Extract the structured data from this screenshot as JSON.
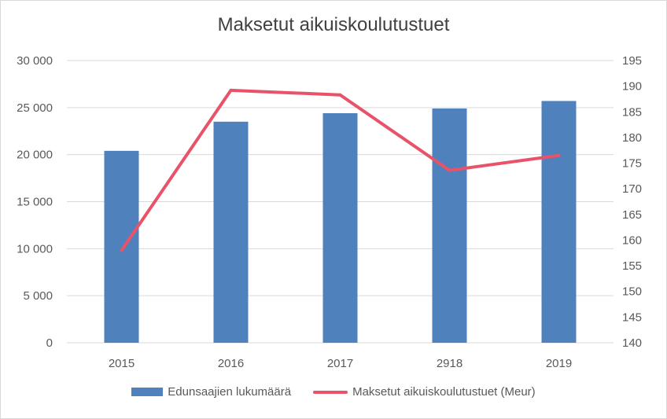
{
  "chart_data": {
    "type": "bar",
    "title": "Maksetut aikuiskoulutustuet",
    "categories": [
      "2015",
      "2016",
      "2017",
      "2918",
      "2019"
    ],
    "series": [
      {
        "name": "Edunsaajien lukumäärä",
        "type": "bar",
        "axis": "left",
        "color": "#4f81bd",
        "values": [
          20400,
          23500,
          24400,
          24900,
          25700
        ]
      },
      {
        "name": "Maksetut aikuiskoulutustuet (Meur)",
        "type": "line",
        "axis": "right",
        "color": "#e8536a",
        "values": [
          158,
          189.2,
          188.3,
          173.6,
          176.5
        ]
      }
    ],
    "y_left": {
      "range": [
        0,
        30000
      ],
      "ticks": [
        0,
        5000,
        10000,
        15000,
        20000,
        25000,
        30000
      ],
      "tick_labels": [
        "0",
        "5 000",
        "10 000",
        "15 000",
        "20 000",
        "25 000",
        "30 000"
      ]
    },
    "y_right": {
      "range": [
        140,
        195
      ],
      "ticks": [
        140,
        145,
        150,
        155,
        160,
        165,
        170,
        175,
        180,
        185,
        190,
        195
      ],
      "tick_labels": [
        "140",
        "145",
        "150",
        "155",
        "160",
        "165",
        "170",
        "175",
        "180",
        "185",
        "190",
        "195"
      ]
    },
    "grid": true,
    "legend_position": "bottom"
  }
}
